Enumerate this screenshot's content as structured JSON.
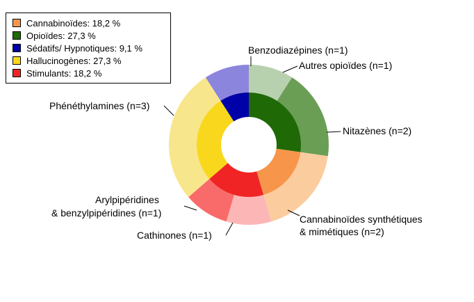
{
  "chart_data": {
    "type": "pie",
    "subtype": "nested-donut",
    "legend_position": "top-left",
    "inner_ring": [
      {
        "name": "Cannabinoïdes",
        "value": 18.2,
        "legend": "Cannabinoïdes: 18,2 %",
        "color": "#F7964A"
      },
      {
        "name": "Opioïdes",
        "value": 27.3,
        "legend": "Opioïdes: 27,3 %",
        "color": "#1F6A07"
      },
      {
        "name": "Sédatifs/ Hypnotiques",
        "value": 9.1,
        "legend": "Sédatifs/ Hypnotiques: 9,1 %",
        "color": "#0000A8"
      },
      {
        "name": "Hallucinogènes",
        "value": 27.3,
        "legend": "Hallucinogènes: 27,3 %",
        "color": "#F9D71C"
      },
      {
        "name": "Stimulants",
        "value": 18.2,
        "legend": "Stimulants: 18,2 %",
        "color": "#F02424"
      }
    ],
    "outer_ring": [
      {
        "label": "Benzodiazépines (n=1)",
        "value": 1,
        "color": "#8C85DD"
      },
      {
        "label": "Autres opioïdes (n=1)",
        "value": 1,
        "color": "#B7D1AE"
      },
      {
        "label": "Nitazènes (n=2)",
        "value": 2,
        "color": "#6A9E55"
      },
      {
        "label": "Cannabinoïdes synthétiques & mimétiques (n=2)",
        "label_lines": [
          "Cannabinoïdes synthétiques",
          "& mimétiques (n=2)"
        ],
        "value": 2,
        "color": "#FBCC9E"
      },
      {
        "label": "Cathinones (n=1)",
        "value": 1,
        "color": "#FDB6B6"
      },
      {
        "label": "Arylpipéridines & benzylpipéridines (n=1)",
        "label_lines": [
          "Arylpipéridines",
          "& benzylpipéridines (n=1)"
        ],
        "value": 1,
        "color": "#F96B6B"
      },
      {
        "label": "Phénéthylamines (n=3)",
        "value": 3,
        "color": "#F8E68C"
      }
    ]
  }
}
